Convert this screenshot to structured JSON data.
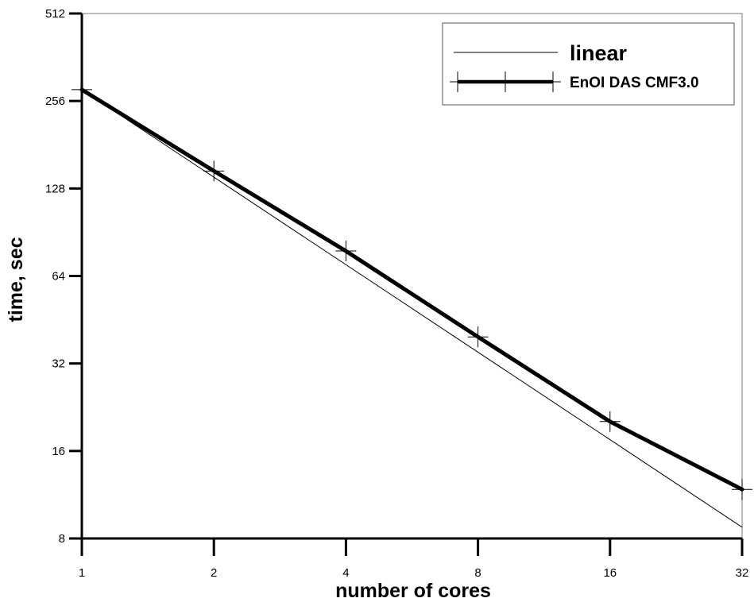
{
  "chart_data": {
    "type": "line",
    "xlabel": "number of cores",
    "ylabel": "time, sec",
    "x_scale": "log2",
    "y_scale": "log2",
    "xlim": [
      1,
      32
    ],
    "ylim": [
      8,
      512
    ],
    "x_ticks": [
      "1",
      "2",
      "4",
      "8",
      "16",
      "32"
    ],
    "y_ticks": [
      "8",
      "16",
      "32",
      "64",
      "128",
      "256",
      "512"
    ],
    "grid": false,
    "legend_position": "top-right",
    "series": [
      {
        "name": "linear",
        "style": "thin",
        "color": "#000000",
        "x": [
          1,
          32
        ],
        "y": [
          280,
          8.75
        ]
      },
      {
        "name": "EnOI DAS CMF3.0",
        "style": "thick-with-plus-markers",
        "color": "#000000",
        "x": [
          1,
          2,
          4,
          8,
          16,
          32
        ],
        "y": [
          280,
          147,
          78,
          39.5,
          20.2,
          11.8
        ]
      }
    ]
  }
}
